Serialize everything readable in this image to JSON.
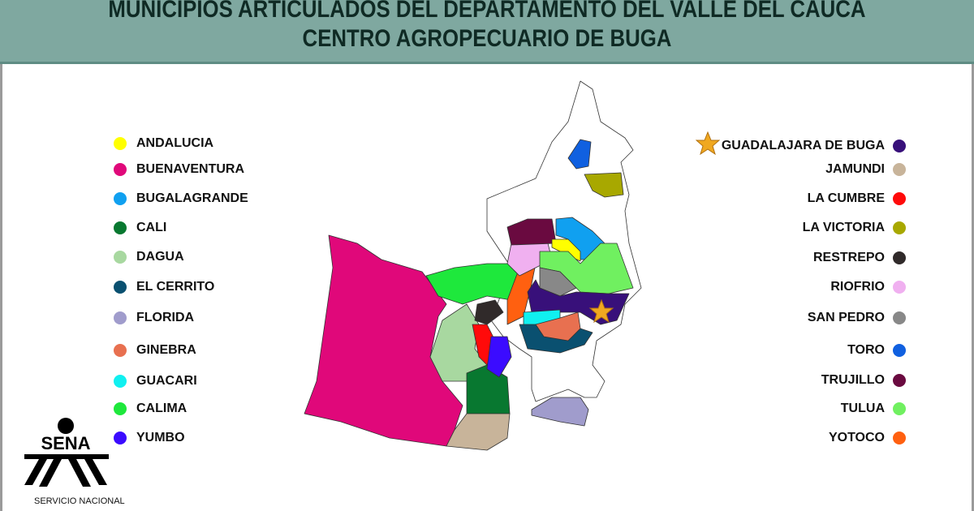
{
  "header": {
    "title": "MUNICIPIOS ARTICULADOS DEL DEPARTAMENTO DEL VALLE DEL CAUCA",
    "subtitle": "CENTRO AGROPECUARIO DE BUGA"
  },
  "legend_left": [
    {
      "label": "ANDALUCIA",
      "color": "#ffff00"
    },
    {
      "label": "BUENAVENTURA",
      "color": "#e0087a"
    },
    {
      "label": "BUGALAGRANDE",
      "color": "#10a0f0"
    },
    {
      "label": "CALI",
      "color": "#087830"
    },
    {
      "label": "DAGUA",
      "color": "#a8d8a0"
    },
    {
      "label": "EL CERRITO",
      "color": "#0a5070"
    },
    {
      "label": "FLORIDA",
      "color": "#a09ccc"
    },
    {
      "label": "GINEBRA",
      "color": "#e87050"
    },
    {
      "label": "GUACARI",
      "color": "#10f0f0"
    },
    {
      "label": "CALIMA",
      "color": "#1ee83c"
    },
    {
      "label": "YUMBO",
      "color": "#3b0bff"
    }
  ],
  "legend_right": [
    {
      "label": "GUADALAJARA DE BUGA",
      "color": "#38107a",
      "icon": "star-icon"
    },
    {
      "label": "JAMUNDI",
      "color": "#c8b49a"
    },
    {
      "label": "LA CUMBRE",
      "color": "#ff0a0a"
    },
    {
      "label": "LA VICTORIA",
      "color": "#a8a800"
    },
    {
      "label": "RESTREPO",
      "color": "#302a2a"
    },
    {
      "label": "RIOFRIO",
      "color": "#f0b0f0"
    },
    {
      "label": "SAN PEDRO",
      "color": "#888888"
    },
    {
      "label": "TORO",
      "color": "#1060e0"
    },
    {
      "label": "TRUJILLO",
      "color": "#6a0a40"
    },
    {
      "label": "TULUA",
      "color": "#70f060"
    },
    {
      "label": "YOTOCO",
      "color": "#ff6010"
    }
  ],
  "logo": {
    "text": "SENA",
    "subtitle": "SERVICIO NACIONAL"
  },
  "colors": {
    "header_bg": "#7fa8a0",
    "title_text": "#0f2a24",
    "star": "#f0a820"
  }
}
